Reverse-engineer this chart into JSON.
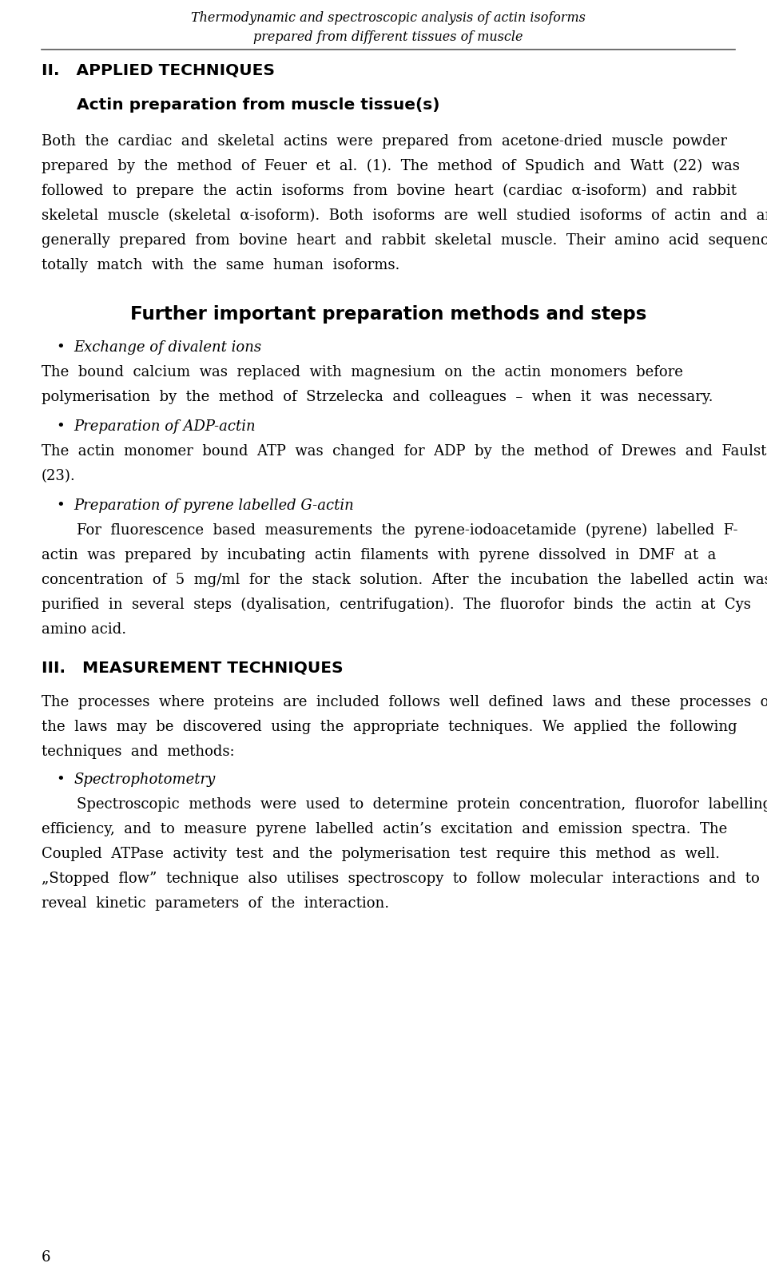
{
  "page_width": 9.6,
  "page_height": 15.96,
  "bg_color": "#ffffff",
  "header_title_line1": "Thermodynamic and spectroscopic analysis of actin isoforms",
  "header_title_line2": "prepared from different tissues of muscle",
  "section2_heading": "II.   APPLIED TECHNIQUES",
  "subsection_heading": "Actin preparation from muscle tissue(s)",
  "further_heading": "Further important preparation methods and steps",
  "bullet1_italic": "Exchange of divalent ions",
  "bullet2_italic": "Preparation of ADP-actin",
  "bullet3_italic": "Preparation of pyrene labelled G-actin",
  "section3_heading": "III.   MEASUREMENT TECHNIQUES",
  "bullet4_italic": "Spectrophotometry",
  "page_number": "6",
  "text_color": "#000000"
}
